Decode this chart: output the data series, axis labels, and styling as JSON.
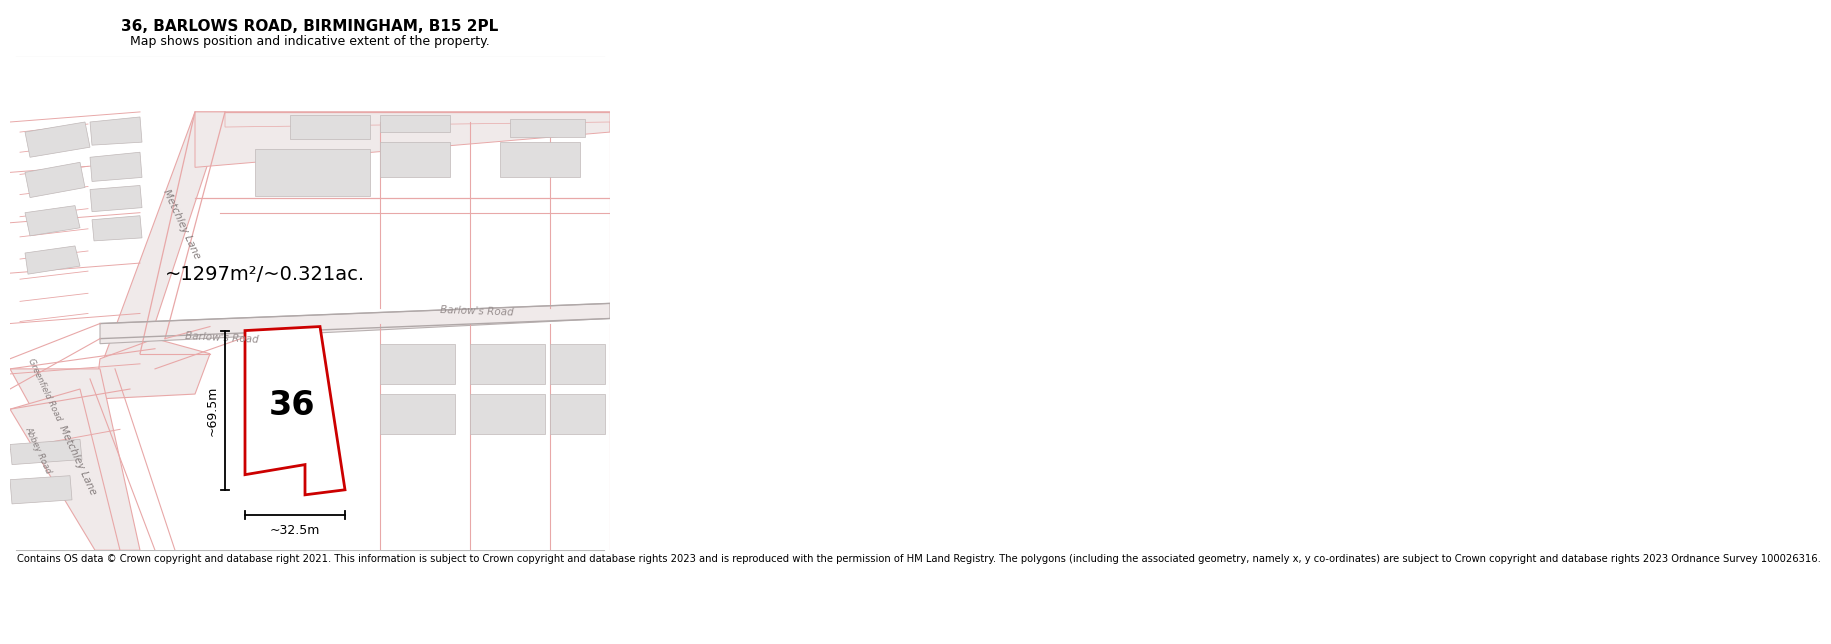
{
  "title": "36, BARLOWS ROAD, BIRMINGHAM, B15 2PL",
  "subtitle": "Map shows position and indicative extent of the property.",
  "footer": "Contains OS data © Crown copyright and database right 2021. This information is subject to Crown copyright and database rights 2023 and is reproduced with the permission of HM Land Registry. The polygons (including the associated geometry, namely x, y co-ordinates) are subject to Crown copyright and database rights 2023 Ordnance Survey 100026316.",
  "area_label": "~1297m²/~0.321ac.",
  "number_label": "36",
  "dim_height_label": "~69.5m",
  "dim_width_label": "~32.5m",
  "road_label_barlows1": "Barlow's Road",
  "road_label_barlows2": "Barlow's Road",
  "road_label_metchley1": "Metchley Lane",
  "road_label_metchley2": "Metchley Lane",
  "road_label_greenfield": "Greenfield Road",
  "road_label_abbey": "Abbey Road",
  "bg_color": "#ffffff",
  "map_bg": "#ffffff",
  "building_fill": "#e0dede",
  "red_color": "#cc0000",
  "pink_color": "#e8a8a8",
  "gray_road": "#c8c0c0",
  "title_fontsize": 11,
  "subtitle_fontsize": 9,
  "footer_fontsize": 7.2,
  "area_fontsize": 14,
  "number_fontsize": 24,
  "dim_fontsize": 9,
  "road_fontsize": 7.5,
  "small_road_fontsize": 6.0
}
